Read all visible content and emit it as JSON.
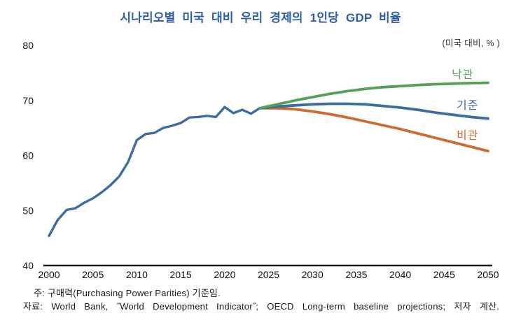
{
  "header": {
    "title": "시나리오별 미국 대비 우리 경제의 1인당 GDP 비율",
    "title_color": "#2F5EA8",
    "unit_label": "(미국 대비, % )"
  },
  "footer": {
    "note": "주: 구매력(Purchasing Power Parities) 기준임.",
    "source": "자료: World Bank, ˝World Development Indicator˝; OECD Long-term baseline projections; 저자 계산."
  },
  "chart_data": {
    "type": "line",
    "title": "시나리오별 미국 대비 우리 경제의 1인당 GDP 비율",
    "unit_label": "(미국 대비, % )",
    "xlabel": "",
    "ylabel": "",
    "xlim": [
      2000,
      2050
    ],
    "ylim": [
      40,
      80
    ],
    "x_ticks": [
      2000,
      2005,
      2010,
      2015,
      2020,
      2025,
      2030,
      2035,
      2040,
      2045,
      2050
    ],
    "y_ticks": [
      40,
      50,
      60,
      70,
      80
    ],
    "grid": false,
    "axis_color": "#1a1a1a",
    "legend_position": "right-end-of-line-labels",
    "series": [
      {
        "id": "historical",
        "label": "",
        "color": "#3D6CA3",
        "x": [
          2000,
          2001,
          2002,
          2003,
          2004,
          2005,
          2006,
          2007,
          2008,
          2009,
          2010,
          2011,
          2012,
          2013,
          2014,
          2015,
          2016,
          2017,
          2018,
          2019,
          2020,
          2021,
          2022,
          2023,
          2024
        ],
        "y": [
          45.4,
          48.3,
          50.1,
          50.4,
          51.4,
          52.2,
          53.3,
          54.6,
          56.2,
          58.8,
          62.8,
          63.9,
          64.1,
          65.0,
          65.4,
          65.9,
          66.9,
          67.0,
          67.2,
          67.0,
          68.8,
          67.7,
          68.3,
          67.6,
          68.6
        ]
      },
      {
        "id": "optimistic",
        "label": "낙관",
        "color": "#55A155",
        "x": [
          2024,
          2026,
          2028,
          2030,
          2032,
          2034,
          2036,
          2038,
          2040,
          2042,
          2044,
          2046,
          2048,
          2050
        ],
        "y": [
          68.6,
          69.3,
          70.0,
          70.6,
          71.2,
          71.7,
          72.1,
          72.4,
          72.6,
          72.8,
          72.95,
          73.05,
          73.15,
          73.2
        ]
      },
      {
        "id": "baseline",
        "label": "기준",
        "color": "#3D6CA3",
        "x": [
          2024,
          2026,
          2028,
          2030,
          2032,
          2034,
          2036,
          2038,
          2040,
          2042,
          2044,
          2046,
          2048,
          2050
        ],
        "y": [
          68.6,
          68.9,
          69.1,
          69.3,
          69.4,
          69.4,
          69.3,
          69.0,
          68.7,
          68.3,
          67.8,
          67.4,
          67.0,
          66.7
        ]
      },
      {
        "id": "pessimistic",
        "label": "비관",
        "color": "#CE6B31",
        "x": [
          2024,
          2026,
          2028,
          2030,
          2032,
          2034,
          2036,
          2038,
          2040,
          2042,
          2044,
          2046,
          2048,
          2050
        ],
        "y": [
          68.6,
          68.6,
          68.4,
          68.0,
          67.5,
          66.9,
          66.2,
          65.5,
          64.8,
          64.0,
          63.2,
          62.4,
          61.6,
          60.8
        ]
      }
    ]
  }
}
